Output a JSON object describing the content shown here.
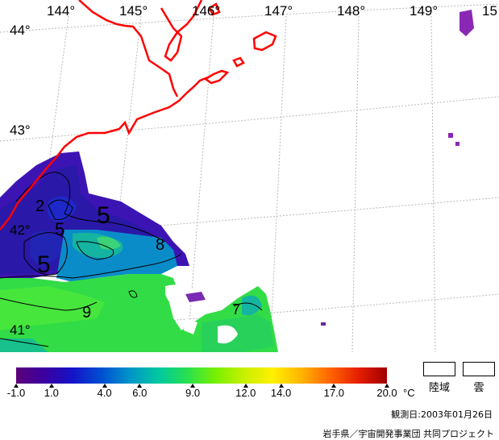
{
  "map": {
    "longitude_labels": [
      "144°",
      "145°",
      "146°",
      "147°",
      "148°",
      "149°",
      "15"
    ],
    "latitude_labels": [
      "44°",
      "43°",
      "42°",
      "41°"
    ],
    "contour_labels": [
      "2",
      "5",
      "5",
      "5",
      "8",
      "9",
      "7"
    ],
    "coastline_color": "#ff0000",
    "land_color": "#ffffff",
    "grid_color": "#c0c0c0"
  },
  "colorbar": {
    "scale_labels": [
      "-1.0",
      "1.0",
      "4.0",
      "6.0",
      "9.0",
      "12.0",
      "14.0",
      "17.0",
      "20.0"
    ],
    "unit": "°C",
    "stops": [
      "#5c007a",
      "#3a00a0",
      "#1414c8",
      "#0050d2",
      "#0096c8",
      "#00c8a0",
      "#28e050",
      "#78f000",
      "#c8f000",
      "#fff000",
      "#ffb400",
      "#ff6400",
      "#e61e00",
      "#a00000"
    ]
  },
  "legend": {
    "land_label": "陸域",
    "cloud_label": "雲"
  },
  "footer": {
    "observation_date": "観測日:2003年01月26日",
    "credit": "岩手県／宇宙開発事業団 共同プロジェクト"
  }
}
